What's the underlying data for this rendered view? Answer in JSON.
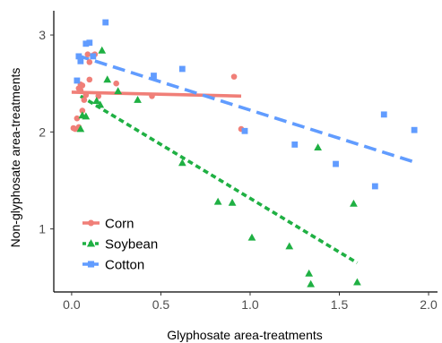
{
  "chart_data": {
    "type": "scatter",
    "xlabel": "Glyphosate area-treatments",
    "ylabel": "Non-glyphosate area-treatments",
    "xlim": [
      -0.1,
      2.05
    ],
    "ylim": [
      0.35,
      3.25
    ],
    "x_ticks": [
      "0.0",
      "0.5",
      "1.0",
      "1.5",
      "2.0"
    ],
    "x_tick_values": [
      0,
      0.5,
      1.0,
      1.5,
      2.0
    ],
    "y_ticks": [
      "1",
      "2",
      "3"
    ],
    "y_tick_values": [
      1,
      2,
      3
    ],
    "grid": false,
    "legend_position": "bottom-left",
    "series": [
      {
        "name": "Corn",
        "marker": "circle",
        "color": "#f07f78",
        "points": [
          [
            0.01,
            2.04
          ],
          [
            0.02,
            2.03
          ],
          [
            0.03,
            2.14
          ],
          [
            0.04,
            2.05
          ],
          [
            0.04,
            2.45
          ],
          [
            0.05,
            2.43
          ],
          [
            0.05,
            2.49
          ],
          [
            0.06,
            2.22
          ],
          [
            0.06,
            2.48
          ],
          [
            0.07,
            2.33
          ],
          [
            0.08,
            2.38
          ],
          [
            0.09,
            2.8
          ],
          [
            0.1,
            2.72
          ],
          [
            0.1,
            2.54
          ],
          [
            0.12,
            2.79
          ],
          [
            0.13,
            2.8
          ],
          [
            0.15,
            2.37
          ],
          [
            0.25,
            2.5
          ],
          [
            0.45,
            2.37
          ],
          [
            0.91,
            2.57
          ],
          [
            0.95,
            2.03
          ]
        ],
        "trend": [
          [
            0.0,
            2.41
          ],
          [
            0.95,
            2.37
          ]
        ]
      },
      {
        "name": "Soybean",
        "marker": "triangle",
        "color": "#1fb043",
        "points": [
          [
            0.05,
            2.03
          ],
          [
            0.06,
            2.17
          ],
          [
            0.08,
            2.16
          ],
          [
            0.14,
            2.32
          ],
          [
            0.16,
            2.28
          ],
          [
            0.17,
            2.84
          ],
          [
            0.2,
            2.54
          ],
          [
            0.26,
            2.42
          ],
          [
            0.37,
            2.33
          ],
          [
            0.62,
            1.68
          ],
          [
            0.82,
            1.28
          ],
          [
            0.9,
            1.27
          ],
          [
            1.01,
            0.91
          ],
          [
            1.22,
            0.82
          ],
          [
            1.33,
            0.54
          ],
          [
            1.34,
            0.43
          ],
          [
            1.38,
            1.84
          ],
          [
            1.58,
            1.26
          ],
          [
            1.6,
            0.45
          ]
        ],
        "trend": [
          [
            0.05,
            2.37
          ],
          [
            1.6,
            0.65
          ]
        ]
      },
      {
        "name": "Cotton",
        "marker": "square",
        "color": "#619cff",
        "points": [
          [
            0.03,
            2.53
          ],
          [
            0.04,
            2.78
          ],
          [
            0.05,
            2.73
          ],
          [
            0.08,
            2.91
          ],
          [
            0.1,
            2.92
          ],
          [
            0.12,
            2.78
          ],
          [
            0.19,
            3.13
          ],
          [
            0.46,
            2.58
          ],
          [
            0.62,
            2.65
          ],
          [
            0.97,
            2.01
          ],
          [
            1.25,
            1.87
          ],
          [
            1.48,
            1.67
          ],
          [
            1.7,
            1.44
          ],
          [
            1.75,
            2.18
          ],
          [
            1.92,
            2.02
          ]
        ],
        "trend": [
          [
            0.03,
            2.79
          ],
          [
            1.92,
            1.69
          ]
        ]
      }
    ]
  }
}
